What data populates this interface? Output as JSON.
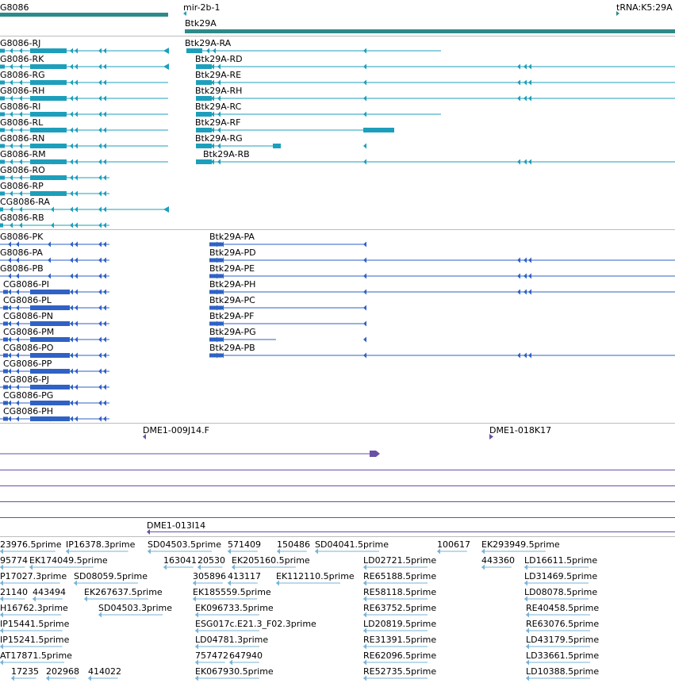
{
  "colors": {
    "gene_track": "#2e8a8a",
    "transcript": "#1d9fbb",
    "protein": "#2f62c4",
    "clone": "#6a4fa8",
    "est": "#79b3d8",
    "divider": "#bdbdbd"
  },
  "top": {
    "genes": [
      {
        "label": "G8086"
      },
      {
        "label": "mir-2b-1"
      },
      {
        "label": "Btk29A"
      },
      {
        "label": "tRNA:K5:29A"
      }
    ]
  },
  "transcripts": {
    "left": [
      "G8086-RJ",
      "G8086-RK",
      "G8086-RG",
      "G8086-RH",
      "G8086-RI",
      "G8086-RL",
      "G8086-RN",
      "G8086-RM",
      "G8086-RO",
      "G8086-RP",
      "CG8086-RA",
      "G8086-RB"
    ],
    "right": [
      "Btk29A-RA",
      "Btk29A-RD",
      "Btk29A-RE",
      "Btk29A-RH",
      "Btk29A-RC",
      "Btk29A-RF",
      "Btk29A-RG",
      "Btk29A-RB"
    ]
  },
  "proteins": {
    "left": [
      "G8086-PK",
      "G8086-PA",
      "G8086-PB",
      "CG8086-PI",
      "CG8086-PL",
      "CG8086-PN",
      "CG8086-PM",
      "CG8086-PO",
      "CG8086-PP",
      "CG8086-PJ",
      "CG8086-PG",
      "CG8086-PH"
    ],
    "right": [
      "Btk29A-PA",
      "Btk29A-PD",
      "Btk29A-PE",
      "Btk29A-PH",
      "Btk29A-PC",
      "Btk29A-PF",
      "Btk29A-PG",
      "Btk29A-PB"
    ]
  },
  "clones": {
    "labels": [
      "DME1-009J14.F",
      "DME1-018K17",
      "DME1-013I14"
    ]
  },
  "ests": {
    "rows": [
      [
        "23976.5prime",
        "IP16378.3prime",
        "SD04503.5prime",
        "571409",
        "150486",
        "SD04041.5prime",
        "100617",
        "EK293949.5prime"
      ],
      [
        "95774",
        "EK174049.5prime",
        "163041",
        "20530",
        "EK205160.5prime",
        "LD02721.5prime",
        "443360",
        "LD16611.5prime"
      ],
      [
        "P17027.3prime",
        "SD08059.5prime",
        "305896",
        "413117",
        "EK112110.5prime",
        "RE65188.5prime",
        "LD31469.5prime"
      ],
      [
        "21140",
        "443494",
        "EK267637.5prime",
        "EK185559.5prime",
        "RE58118.5prime",
        "LD08078.5prime"
      ],
      [
        "H16762.3prime",
        "SD04503.3prime",
        "EK096733.5prime",
        "RE63752.5prime",
        "RE40458.5prime"
      ],
      [
        "IP15441.5prime",
        "ESG017c.E21.3_F02.3prime",
        "LD20819.5prime",
        "RE63076.5prime"
      ],
      [
        "IP15241.5prime",
        "LD04781.3prime",
        "RE31391.5prime",
        "LD43179.5prime"
      ],
      [
        "AT17871.5prime",
        "757472",
        "647940",
        "RE62096.5prime",
        "LD33661.5prime"
      ],
      [
        "17235",
        "202968",
        "414022",
        "EK067930.5prime",
        "RE52735.5prime",
        "LD10388.5prime"
      ]
    ]
  }
}
